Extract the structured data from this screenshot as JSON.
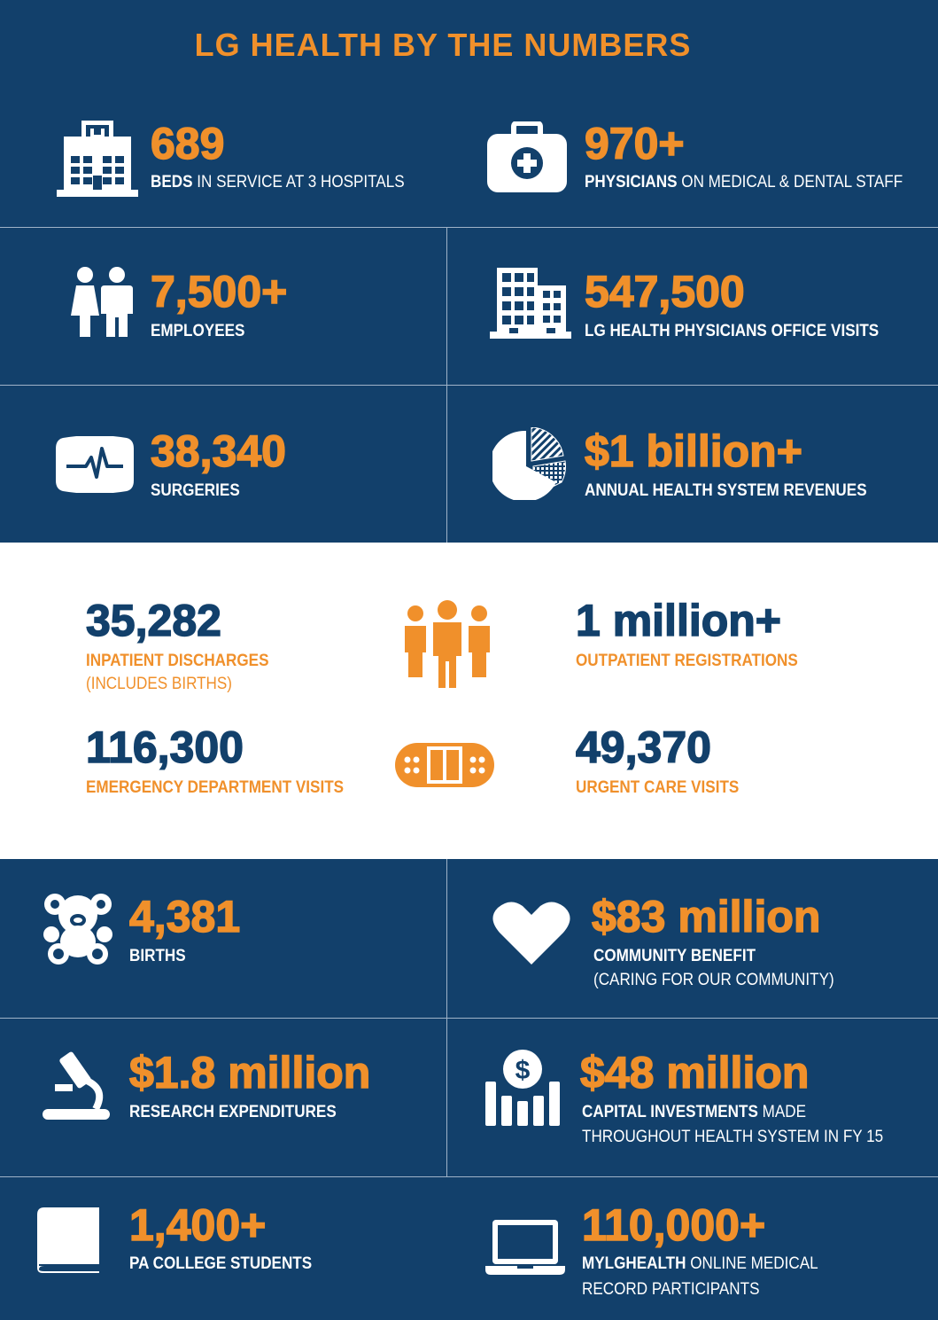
{
  "title": "LG HEALTH BY THE NUMBERS",
  "colors": {
    "navy": "#12406b",
    "orange": "#f0902b",
    "white": "#ffffff"
  },
  "stats_top": [
    {
      "icon": "hospital-icon",
      "value": "689",
      "label_bold": "BEDS",
      "label_rest": " IN SERVICE AT 3 HOSPITALS"
    },
    {
      "icon": "medical-kit-icon",
      "value": "970+",
      "label_bold": "PHYSICIANS",
      "label_rest": " ON MEDICAL & DENTAL STAFF"
    },
    {
      "icon": "people-icon",
      "value": "7,500+",
      "label_bold": "EMPLOYEES",
      "label_rest": ""
    },
    {
      "icon": "office-building-icon",
      "value": "547,500",
      "label_bold": "LG HEALTH PHYSICIANS OFFICE VISITS",
      "label_rest": ""
    },
    {
      "icon": "heart-monitor-icon",
      "value": "38,340",
      "label_bold": "SURGERIES",
      "label_rest": ""
    },
    {
      "icon": "pie-chart-icon",
      "value": "$1 billion+",
      "label_bold": "ANNUAL HEALTH SYSTEM REVENUES",
      "label_rest": ""
    }
  ],
  "stats_middle": [
    {
      "value": "35,282",
      "label": "INPATIENT DISCHARGES",
      "sub": "(INCLUDES BIRTHS)"
    },
    {
      "value": "1 million+",
      "label": "OUTPATIENT REGISTRATIONS",
      "sub": ""
    },
    {
      "value": "116,300",
      "label": "EMERGENCY DEPARTMENT VISITS",
      "sub": ""
    },
    {
      "value": "49,370",
      "label": "URGENT CARE VISITS",
      "sub": ""
    }
  ],
  "middle_icons": [
    "group-icon",
    "bandage-icon"
  ],
  "stats_bottom": [
    {
      "icon": "teddy-bear-icon",
      "value": "4,381",
      "label_bold": "BIRTHS",
      "label_rest": "",
      "line2": ""
    },
    {
      "icon": "heart-icon",
      "value": "$83 million",
      "label_bold": "COMMUNITY BENEFIT",
      "label_rest": "",
      "line2": "(CARING FOR OUR COMMUNITY)"
    },
    {
      "icon": "microscope-icon",
      "value": "$1.8 million",
      "label_bold": "RESEARCH EXPENDITURES",
      "label_rest": "",
      "line2": ""
    },
    {
      "icon": "investment-chart-icon",
      "value": "$48 million",
      "label_bold": "CAPITAL INVESTMENTS",
      "label_rest": " MADE",
      "line2": "THROUGHOUT HEALTH SYSTEM IN FY 15"
    },
    {
      "icon": "book-icon",
      "value": "1,400+",
      "label_bold": "PA COLLEGE STUDENTS",
      "label_rest": "",
      "line2": ""
    },
    {
      "icon": "laptop-icon",
      "value": "110,000+",
      "label_bold": "MYLGHEALTH",
      "label_rest": " ONLINE MEDICAL",
      "line2": "RECORD PARTICIPANTS"
    }
  ]
}
